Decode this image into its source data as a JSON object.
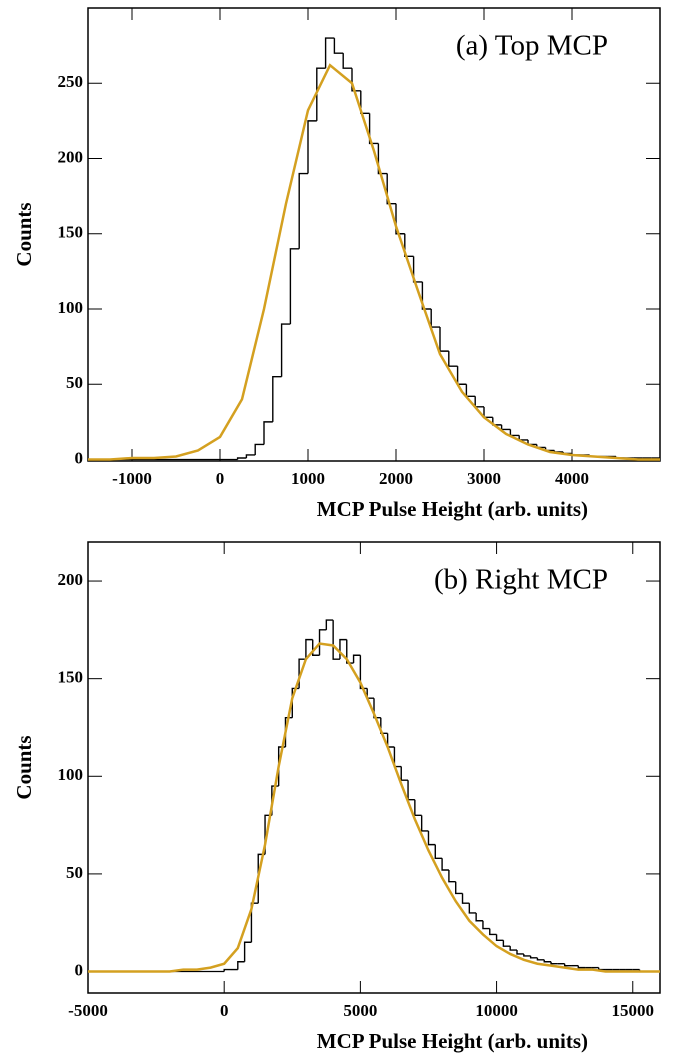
{
  "chart_data": [
    {
      "type": "histogram",
      "annotation": "(a) Top MCP",
      "xlabel": "MCP Pulse Height (arb. units)",
      "ylabel": "Counts",
      "xlim": [
        -1500,
        5000
      ],
      "ylim": [
        -1,
        300
      ],
      "xticks": [
        -1000,
        0,
        1000,
        2000,
        3000,
        4000
      ],
      "yticks": [
        0,
        50,
        100,
        150,
        200,
        250
      ],
      "histogram": {
        "color": "#000000",
        "bins": [
          200,
          300,
          400,
          500,
          600,
          700,
          800,
          900,
          1000,
          1100,
          1200,
          1300,
          1400,
          1500,
          1600,
          1700,
          1800,
          1900,
          2000,
          2100,
          2200,
          2300,
          2400,
          2500,
          2600,
          2700,
          2800,
          2900,
          3000,
          3100,
          3200,
          3300,
          3400,
          3500,
          3600,
          3700,
          3800,
          3900,
          4000,
          4100,
          4200,
          4300,
          4400,
          4500,
          4600,
          4700,
          4800,
          4900,
          5000
        ],
        "counts": [
          1,
          3,
          10,
          25,
          55,
          90,
          140,
          190,
          225,
          260,
          280,
          270,
          260,
          245,
          230,
          210,
          190,
          170,
          150,
          135,
          118,
          100,
          88,
          72,
          62,
          50,
          42,
          35,
          28,
          23,
          20,
          16,
          13,
          10,
          8,
          6,
          5,
          4,
          3,
          3,
          2,
          2,
          2,
          1,
          1,
          1,
          1,
          1
        ]
      },
      "fit": {
        "color": "#d4a020",
        "x": [
          -1500,
          -1250,
          -1000,
          -750,
          -500,
          -250,
          0,
          250,
          500,
          750,
          1000,
          1250,
          1500,
          1750,
          2000,
          2250,
          2500,
          2750,
          3000,
          3250,
          3500,
          3750,
          4000,
          4250,
          4500,
          4750,
          5000
        ],
        "values": [
          0,
          0,
          1,
          1,
          2,
          6,
          15,
          40,
          100,
          170,
          232,
          262,
          250,
          205,
          155,
          112,
          70,
          45,
          28,
          17,
          10,
          5,
          3,
          2,
          1,
          0,
          0
        ]
      }
    },
    {
      "type": "histogram",
      "annotation": "(b) Right MCP",
      "xlabel": "MCP Pulse Height (arb. units)",
      "ylabel": "Counts",
      "xlim": [
        -5000,
        16000
      ],
      "ylim": [
        -11,
        220
      ],
      "xticks": [
        -5000,
        0,
        5000,
        10000,
        15000
      ],
      "yticks": [
        0,
        50,
        100,
        150,
        200
      ],
      "histogram": {
        "color": "#000000",
        "bins": [
          0,
          250,
          500,
          750,
          1000,
          1250,
          1500,
          1750,
          2000,
          2250,
          2500,
          2750,
          3000,
          3250,
          3500,
          3750,
          4000,
          4250,
          4500,
          4750,
          5000,
          5250,
          5500,
          5750,
          6000,
          6250,
          6500,
          6750,
          7000,
          7250,
          7500,
          7750,
          8000,
          8250,
          8500,
          8750,
          9000,
          9250,
          9500,
          9750,
          10000,
          10250,
          10500,
          10750,
          11000,
          11250,
          11500,
          11750,
          12000,
          12250,
          12500,
          12750,
          13000,
          13250,
          13500,
          13750,
          14000,
          14250,
          14500,
          14750,
          15000,
          15250,
          15500,
          15750,
          16000
        ],
        "counts": [
          1,
          1,
          5,
          15,
          35,
          60,
          80,
          95,
          115,
          130,
          145,
          160,
          170,
          162,
          175,
          180,
          160,
          170,
          158,
          162,
          145,
          140,
          130,
          122,
          115,
          105,
          98,
          88,
          80,
          72,
          65,
          58,
          52,
          46,
          40,
          35,
          30,
          26,
          22,
          19,
          16,
          13,
          11,
          9,
          8,
          7,
          6,
          5,
          4,
          4,
          3,
          3,
          2,
          2,
          2,
          1,
          1,
          1,
          1,
          1,
          1,
          0,
          0,
          0
        ]
      },
      "fit": {
        "color": "#d4a020",
        "x": [
          -5000,
          -4500,
          -4000,
          -3500,
          -3000,
          -2500,
          -2000,
          -1500,
          -1000,
          -500,
          0,
          500,
          1000,
          1500,
          2000,
          2500,
          3000,
          3500,
          4000,
          4500,
          5000,
          5500,
          6000,
          6500,
          7000,
          7500,
          8000,
          8500,
          9000,
          9500,
          10000,
          10500,
          11000,
          11500,
          12000,
          12500,
          13000,
          13500,
          14000,
          14500,
          15000,
          15500,
          16000
        ],
        "values": [
          0,
          0,
          0,
          0,
          0,
          0,
          0,
          1,
          1,
          2,
          4,
          12,
          32,
          65,
          105,
          140,
          160,
          168,
          167,
          160,
          148,
          132,
          115,
          96,
          78,
          62,
          48,
          36,
          26,
          19,
          13,
          9,
          6,
          4,
          3,
          2,
          1,
          1,
          0,
          0,
          0,
          0,
          0
        ]
      }
    }
  ]
}
